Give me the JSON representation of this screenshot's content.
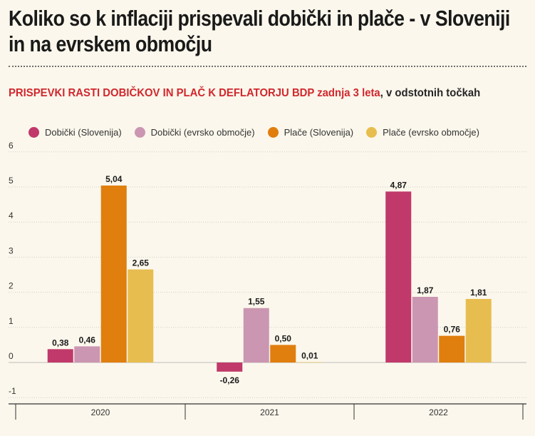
{
  "title_lines": [
    "Koliko so k inflaciji prispevali dobički in plače - v Sloveniji",
    "in na evrskem območju"
  ],
  "subtitle": {
    "red_part": "PRISPEVKI RASTI DOBIČKOV IN PLAČ K DEFLATORJU BDP zadnja 3 leta",
    "dark_part": ", v odstotnih točkah"
  },
  "colors": {
    "background": "#fbf7ec",
    "accent_red": "#d1282e",
    "gridline": "#cfcfcf"
  },
  "chart_data": {
    "type": "bar",
    "categories": [
      "2020",
      "2021",
      "2022"
    ],
    "series": [
      {
        "name": "Dobički (Slovenija)",
        "color": "#c0396a",
        "values": [
          0.38,
          -0.26,
          4.87
        ],
        "labels": [
          "0,38",
          "-0,26",
          "4,87"
        ]
      },
      {
        "name": "Dobički (evrsko območje)",
        "color": "#cb96b1",
        "values": [
          0.46,
          1.55,
          1.87
        ],
        "labels": [
          "0,46",
          "1,55",
          "1,87"
        ]
      },
      {
        "name": "Plače (Slovenija)",
        "color": "#e07e0e",
        "values": [
          5.04,
          0.5,
          0.76
        ],
        "labels": [
          "5,04",
          "0,50",
          "0,76"
        ]
      },
      {
        "name": "Plače (evrsko območje)",
        "color": "#e8bd4f",
        "values": [
          2.65,
          0.01,
          1.81
        ],
        "labels": [
          "2,65",
          "0,01",
          "1,81"
        ]
      }
    ],
    "yticks": [
      6,
      5,
      4,
      3,
      2,
      1,
      0,
      -1
    ],
    "ylim": [
      -1,
      6
    ],
    "grid": true,
    "legend_position": "top"
  }
}
